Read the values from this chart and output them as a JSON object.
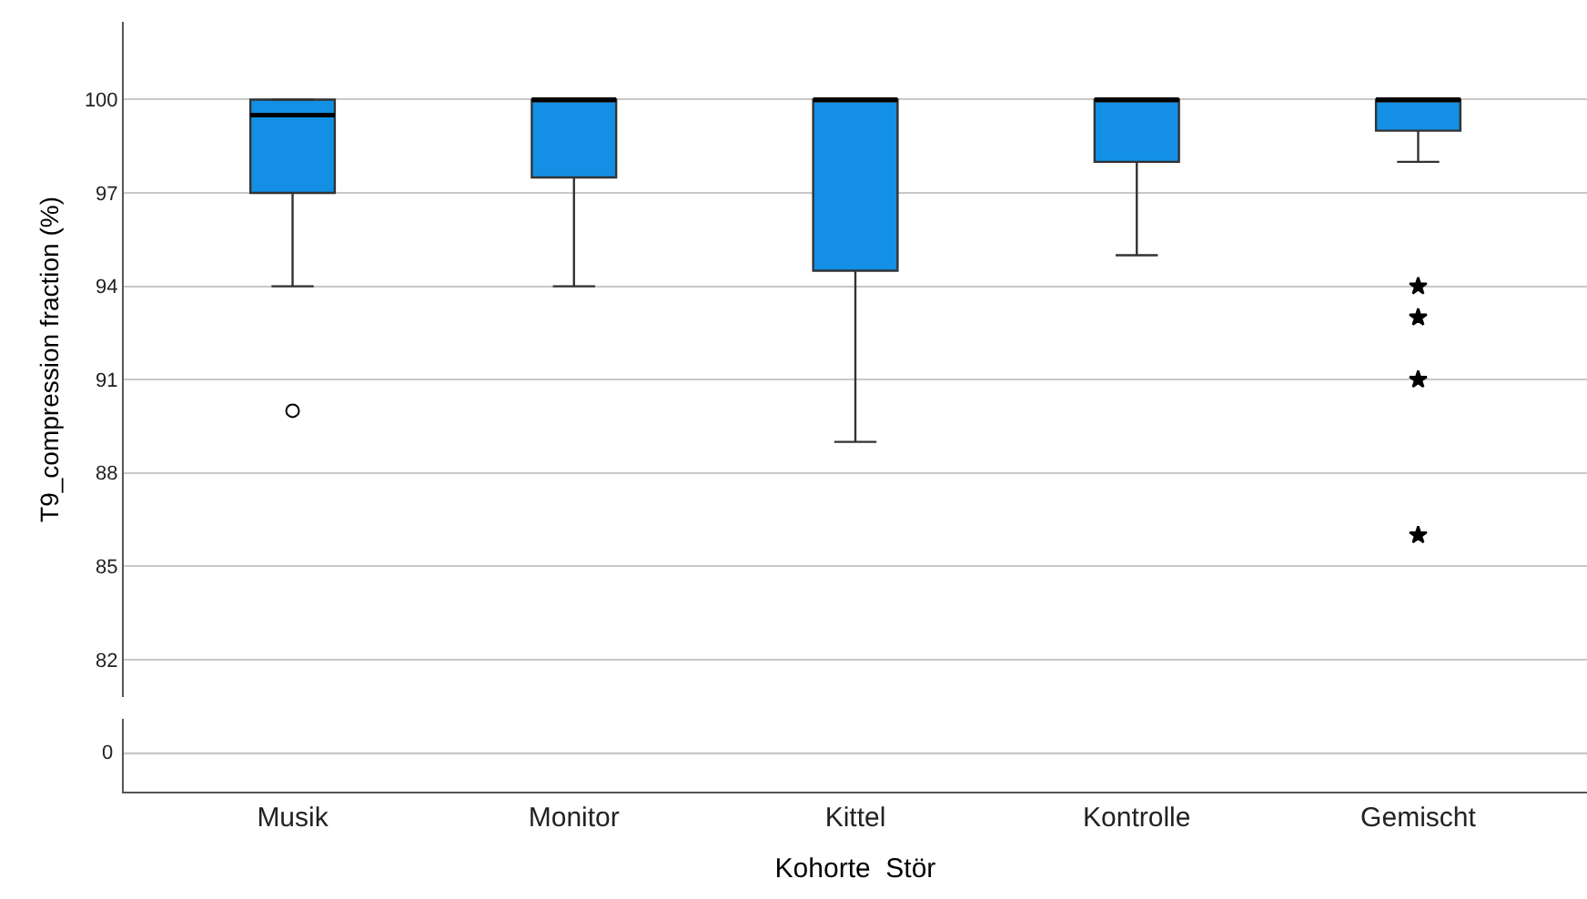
{
  "chart_data": [
    {
      "type": "box",
      "ylabel": "T9_compression fraction (%)",
      "categories": [
        "Musik",
        "Monitor",
        "Kittel",
        "Kontrolle",
        "Gemischt"
      ],
      "color": "#1390e6",
      "grid": "y",
      "tick_labels": "y",
      "ylim": [
        80.8,
        102.5
      ],
      "yticks": [
        82,
        85,
        88,
        91,
        94,
        97,
        100
      ],
      "marker": "circle",
      "boxes": [
        {
          "low": 94,
          "q1": 97,
          "median": 99.5,
          "q3": 100,
          "high": 100,
          "outliers": [
            90
          ]
        },
        {
          "low": 94,
          "q1": 97.5,
          "median": 100,
          "q3": 100,
          "high": 100
        },
        {
          "low": 89,
          "q1": 94.5,
          "median": 100,
          "q3": 100,
          "high": 100
        },
        {
          "low": 95,
          "q1": 98,
          "median": 100,
          "q3": 100,
          "high": 100
        },
        {
          "low": 98,
          "q1": 99,
          "median": 100,
          "q3": 100,
          "high": 100
        }
      ],
      "series": [
        {
          "type": "scatter",
          "marker": "star",
          "color": "#000000",
          "x": [
            "Gemischt",
            "Gemischt",
            "Gemischt",
            "Gemischt"
          ],
          "values": [
            94,
            93,
            91,
            86
          ]
        }
      ]
    },
    {
      "type": "other",
      "xlabel": "Kohorte  Stör",
      "categories": [
        "Musik",
        "Monitor",
        "Kittel",
        "Kontrolle",
        "Gemischt"
      ],
      "annotations": [
        "0"
      ]
    }
  ]
}
